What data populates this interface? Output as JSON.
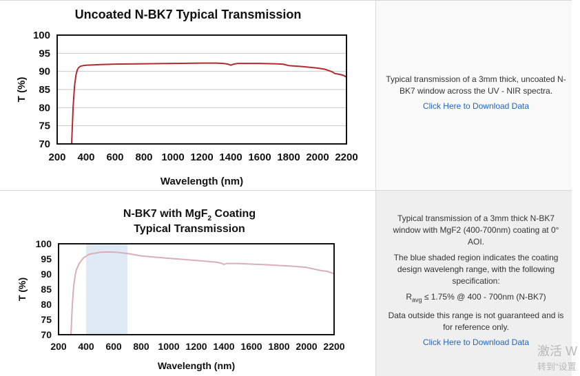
{
  "chart_data": [
    {
      "type": "line",
      "title": "Uncoated N-BK7 Typical Transmission",
      "xlabel": "Wavelength (nm)",
      "ylabel": "T (%)",
      "xlim": [
        200,
        2200
      ],
      "ylim": [
        70,
        100
      ],
      "xticks": [
        "200",
        "400",
        "600",
        "800",
        "1000",
        "1200",
        "1400",
        "1600",
        "1800",
        "2000",
        "2200"
      ],
      "yticks": [
        "70",
        "75",
        "80",
        "85",
        "90",
        "95",
        "100"
      ],
      "grid": true,
      "line_color": "#b22a2e",
      "series": [
        {
          "x": [
            300,
            310,
            320,
            330,
            340,
            350,
            360,
            380,
            400,
            450,
            500,
            600,
            800,
            1000,
            1200,
            1300,
            1350,
            1380,
            1400,
            1420,
            1450,
            1500,
            1600,
            1700,
            1760,
            1800,
            1900,
            2000,
            2050,
            2100,
            2120,
            2150,
            2180,
            2200
          ],
          "y": [
            70,
            80,
            86,
            89,
            90.5,
            91.1,
            91.4,
            91.6,
            91.7,
            91.8,
            91.9,
            92.0,
            92.1,
            92.2,
            92.3,
            92.3,
            92.2,
            92.0,
            91.7,
            92.0,
            92.2,
            92.2,
            92.2,
            92.1,
            92.0,
            91.6,
            91.3,
            90.9,
            90.6,
            89.9,
            89.4,
            89.2,
            88.9,
            88.4
          ]
        }
      ]
    },
    {
      "type": "line",
      "title": "N-BK7 with MgF2 Coating Typical Transmission",
      "title_line1": "N-BK7 with MgF",
      "title_sub": "2",
      "title_line1_end": " Coating",
      "title_line2": "Typical Transmission",
      "xlabel": "Wavelength (nm)",
      "ylabel": "T (%)",
      "xlim": [
        200,
        2200
      ],
      "ylim": [
        70,
        100
      ],
      "xticks": [
        "200",
        "400",
        "600",
        "800",
        "1000",
        "1200",
        "1400",
        "1600",
        "1800",
        "2000",
        "2200"
      ],
      "yticks": [
        "70",
        "75",
        "80",
        "85",
        "90",
        "95",
        "100"
      ],
      "grid": false,
      "line_color": "#d9aeb7",
      "shaded_region": {
        "x": [
          400,
          700
        ],
        "color": "#dfeaf6"
      },
      "series": [
        {
          "x": [
            290,
            300,
            310,
            320,
            330,
            350,
            380,
            420,
            500,
            560,
            620,
            700,
            800,
            1000,
            1200,
            1350,
            1380,
            1400,
            1420,
            1500,
            1700,
            1900,
            2000,
            2050,
            2100,
            2150,
            2200
          ],
          "y": [
            70,
            80,
            86,
            89.5,
            91.5,
            93.5,
            95.3,
            96.5,
            97.2,
            97.3,
            97.2,
            96.8,
            96.0,
            95.2,
            94.5,
            93.9,
            93.6,
            93.2,
            93.5,
            93.5,
            93.1,
            92.6,
            92.2,
            91.7,
            91.2,
            90.9,
            90.1
          ]
        }
      ]
    }
  ],
  "panels": [
    {
      "description": "Typical transmission of a 3mm thick, uncoated N-BK7 window across the UV - NIR spectra.",
      "link": "Click Here to Download Data"
    },
    {
      "description1": "Typical transmission of a 3mm thick N-BK7 window with MgF2 (400-700nm) coating at 0° AOI.",
      "description2": "The blue shaded region indicates the coating design wavelengh range, with the following specification:",
      "spec_r": "R",
      "spec_sub": "avg",
      "spec_rest": " ≤ 1.75% @ 400 - 700nm (N-BK7)",
      "description3": "Data outside this range is not guaranteed and is for reference only.",
      "link": "Click Here to Download Data"
    }
  ],
  "watermark": {
    "line1": "激活 W",
    "line2": "转到\"设置"
  }
}
